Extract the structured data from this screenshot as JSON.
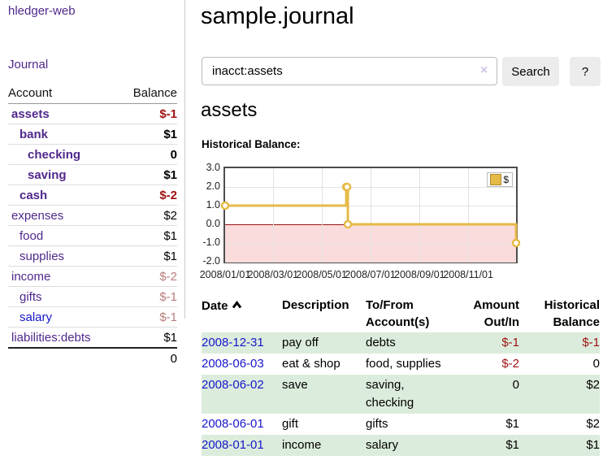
{
  "app": {
    "brand": "hledger-web"
  },
  "colors": {
    "accent_purple": "#50288c",
    "link_blue": "#1616cc",
    "negative_strong": "#9e1111",
    "negative_soft": "#b87c7c",
    "row_green": "#dcecdc",
    "chart_line_gold": "#e6ba49",
    "chart_negative_fill": "#fbdcdc",
    "chart_zero_line": "#990f0f",
    "button_bg": "#ececec"
  },
  "sidebar": {
    "journal_link": "Journal",
    "accounts": {
      "account_header": "Account",
      "balance_header": "Balance",
      "rows": [
        {
          "name": "assets",
          "balance": "$-1",
          "depth": 0,
          "bold": true,
          "blue": false
        },
        {
          "name": "bank",
          "balance": "$1",
          "depth": 1,
          "bold": true,
          "blue": false
        },
        {
          "name": "checking",
          "balance": "0",
          "depth": 2,
          "bold": true,
          "blue": false
        },
        {
          "name": "saving",
          "balance": "$1",
          "depth": 2,
          "bold": true,
          "blue": false
        },
        {
          "name": "cash",
          "balance": "$-2",
          "depth": 1,
          "bold": true,
          "blue": false
        },
        {
          "name": "expenses",
          "balance": "$2",
          "depth": 0,
          "bold": false,
          "blue": false
        },
        {
          "name": "food",
          "balance": "$1",
          "depth": 1,
          "bold": false,
          "blue": false
        },
        {
          "name": "supplies",
          "balance": "$1",
          "depth": 1,
          "bold": false,
          "blue": false
        },
        {
          "name": "income",
          "balance": "$-2",
          "depth": 0,
          "bold": false,
          "blue": false
        },
        {
          "name": "gifts",
          "balance": "$-1",
          "depth": 1,
          "bold": false,
          "blue": false
        },
        {
          "name": "salary",
          "balance": "$-1",
          "depth": 1,
          "bold": false,
          "blue": true
        },
        {
          "name": "liabilities:debts",
          "balance": "$1",
          "depth": 0,
          "bold": false,
          "blue": false
        }
      ],
      "total": "0"
    }
  },
  "main": {
    "page_title": "sample.journal",
    "search": {
      "value": "inacct:assets",
      "clear_icon": "×",
      "button_label": "Search",
      "help_label": "?"
    },
    "account_heading": "assets",
    "chart_label": "Historical Balance:"
  },
  "chart_data": {
    "type": "line",
    "step": true,
    "title": "Historical Balance:",
    "series": [
      {
        "name": "$",
        "x": [
          "2008-01-01",
          "2008-06-01",
          "2008-06-02",
          "2008-06-03",
          "2008-12-31"
        ],
        "y": [
          1,
          2,
          2,
          0,
          -1
        ]
      }
    ],
    "ylim": [
      -2,
      3
    ],
    "yticks": [
      "3.0",
      "2.0",
      "1.0",
      "0.0",
      "-1.0",
      "-2.0"
    ],
    "xticks": [
      "2008/01/01",
      "2008/03/01",
      "2008/05/01",
      "2008/07/01",
      "2008/09/01",
      "2008/11/01"
    ],
    "x_range": [
      "2008-01-01",
      "2008-12-31"
    ],
    "grid": true,
    "legend_position": "top-right",
    "negative_region": true
  },
  "register": {
    "headers": {
      "date": "Date",
      "sort_icon": "chevron-up",
      "description": "Description",
      "accounts": "To/From\nAccount(s)",
      "amount": "Amount\nOut/In",
      "balance": "Historical\nBalance"
    },
    "rows": [
      {
        "date": "2008-12-31",
        "description": "pay off",
        "accounts": "debts",
        "amount": "$-1",
        "balance": "$-1"
      },
      {
        "date": "2008-06-03",
        "description": "eat & shop",
        "accounts": "food, supplies",
        "amount": "$-2",
        "balance": "0"
      },
      {
        "date": "2008-06-02",
        "description": "save",
        "accounts": "saving,\nchecking",
        "amount": "0",
        "balance": "$2"
      },
      {
        "date": "2008-06-01",
        "description": "gift",
        "accounts": "gifts",
        "amount": "$1",
        "balance": "$2"
      },
      {
        "date": "2008-01-01",
        "description": "income",
        "accounts": "salary",
        "amount": "$1",
        "balance": "$1"
      }
    ]
  }
}
